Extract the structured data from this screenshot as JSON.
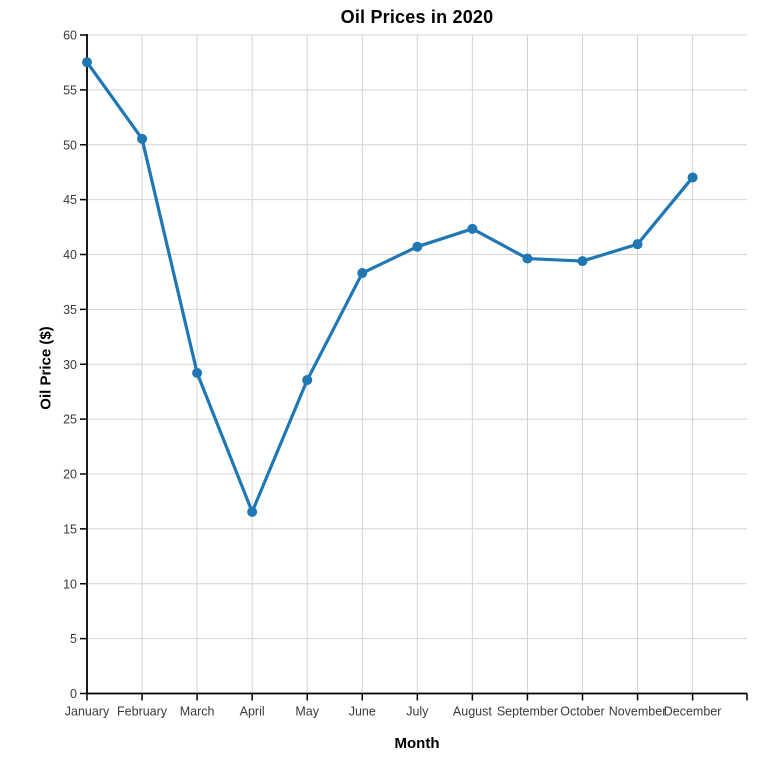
{
  "chart_data": {
    "type": "line",
    "title": "Oil Prices in 2020",
    "xlabel": "Month",
    "ylabel": "Oil Price ($)",
    "categories": [
      "January",
      "February",
      "March",
      "April",
      "May",
      "June",
      "July",
      "August",
      "September",
      "October",
      "November",
      "December"
    ],
    "series": [
      {
        "name": "Oil Price",
        "values": [
          57.52,
          50.54,
          29.21,
          16.55,
          28.56,
          38.31,
          40.71,
          42.34,
          39.63,
          39.4,
          40.94,
          47.02
        ]
      }
    ],
    "ylim": [
      0,
      60
    ],
    "ytick_step": 5,
    "yticks": [
      0,
      5,
      10,
      15,
      20,
      25,
      30,
      35,
      40,
      45,
      50,
      55,
      60
    ],
    "grid": true,
    "legend_position": "none",
    "marker": "circle",
    "colors": {
      "line": "#1f77b4",
      "marker": "#1f77b4",
      "grid": "#d4d4d4",
      "axis": "#000000",
      "tick_label": "#3a3a3a",
      "title_text": "#000000",
      "background": "#ffffff"
    }
  }
}
